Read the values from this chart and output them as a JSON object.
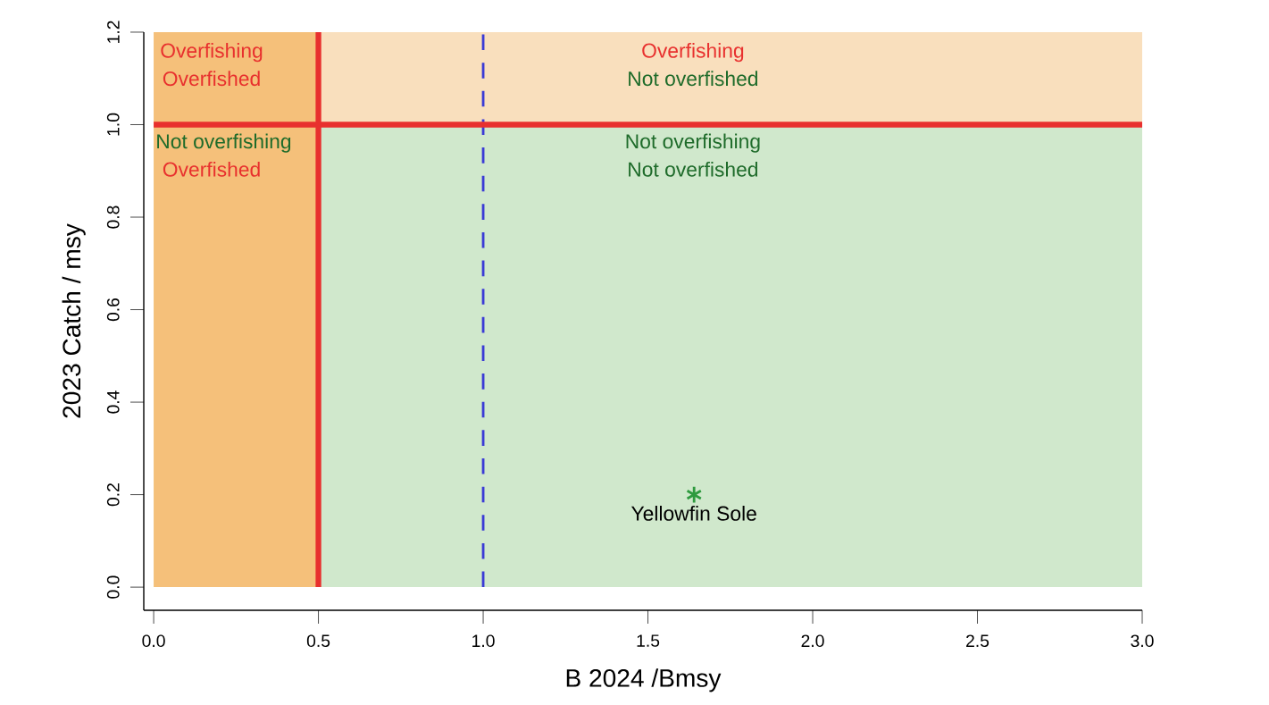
{
  "chart_data": {
    "type": "scatter",
    "xlabel": "B 2024 /Bmsy",
    "ylabel": "2023 Catch / msy",
    "series": [
      {
        "name": "Yellowfin Sole",
        "color": "#2e9a3e",
        "x": [
          1.64
        ],
        "values": [
          0.2
        ]
      }
    ],
    "marker": "cross",
    "grid": false,
    "xlim": [
      -0.03,
      3.0
    ],
    "ylim": [
      -0.05,
      1.2
    ],
    "xticks": [
      {
        "value": 0,
        "label": "0.0"
      },
      {
        "value": 0.5,
        "label": "0.5"
      },
      {
        "value": 1,
        "label": "1.0"
      },
      {
        "value": 1.5,
        "label": "1.5"
      },
      {
        "value": 2,
        "label": "2.0"
      },
      {
        "value": 2.5,
        "label": "2.5"
      },
      {
        "value": 3,
        "label": "3.0"
      }
    ],
    "yticks": [
      {
        "value": 0,
        "label": "0.0"
      },
      {
        "value": 0.2,
        "label": "0.2"
      },
      {
        "value": 0.4,
        "label": "0.4"
      },
      {
        "value": 0.6,
        "label": "0.6"
      },
      {
        "value": 0.8,
        "label": "0.8"
      },
      {
        "value": 1,
        "label": "1.0"
      },
      {
        "value": 1.2,
        "label": "1.2"
      }
    ],
    "bands": [
      {
        "axis": "y",
        "from": 0,
        "to": 1,
        "color": "#d0e8cc"
      },
      {
        "axis": "y",
        "from": 1,
        "to": 1.2,
        "color": "#f9dfbd"
      },
      {
        "axis": "x",
        "from": 0,
        "to": 0.5,
        "color": "#f5c07a"
      }
    ],
    "ref_lines": [
      {
        "axis": "x",
        "value": 1,
        "color": "#3b3bd6",
        "line_style": "dashed"
      },
      {
        "axis": "x",
        "value": 0.5,
        "color": "#e8302e",
        "line_style": "solid"
      },
      {
        "axis": "y",
        "value": 1,
        "color": "#e8302e",
        "line_style": "solid"
      }
    ],
    "annotations": [
      "Overfishing",
      "Overfished",
      "Not overfishing",
      "Overfished",
      "Overfishing",
      "Not overfished",
      "Not overfishing",
      "Not overfished"
    ]
  }
}
